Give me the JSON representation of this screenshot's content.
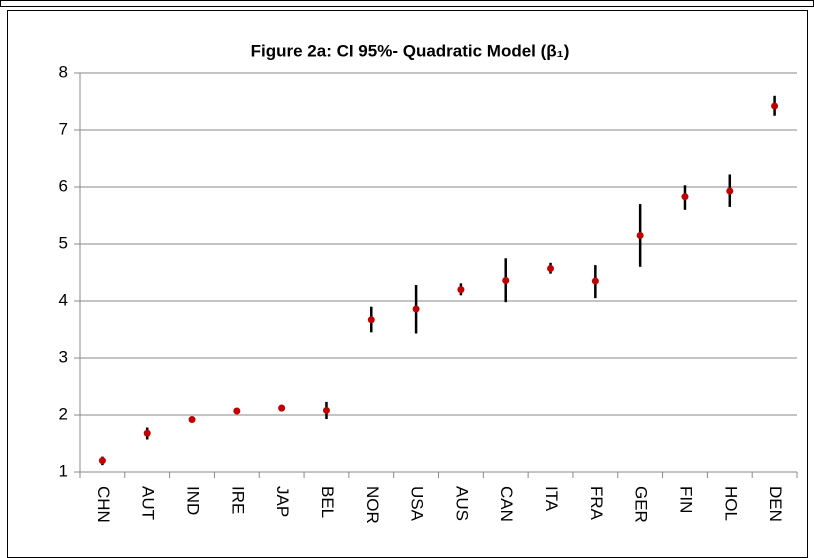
{
  "chart_data": {
    "type": "errorbar",
    "title": "Figure 2a: CI 95%- Quadratic Model (β₁)",
    "categories": [
      "CHN",
      "AUT",
      "IND",
      "IRE",
      "JAP",
      "BEL",
      "NOR",
      "USA",
      "AUS",
      "CAN",
      "ITA",
      "FRA",
      "GER",
      "FIN",
      "HOL",
      "DEN"
    ],
    "series": [
      {
        "color": "#c00000",
        "values": [
          1.2,
          1.68,
          1.92,
          2.07,
          2.12,
          2.08,
          3.67,
          3.86,
          4.2,
          4.36,
          4.57,
          4.35,
          5.15,
          5.83,
          5.93,
          7.42
        ],
        "lower": [
          1.12,
          1.57,
          1.88,
          2.05,
          2.07,
          1.93,
          3.45,
          3.43,
          4.1,
          3.98,
          4.48,
          4.05,
          4.6,
          5.6,
          5.65,
          7.25
        ],
        "upper": [
          1.27,
          1.78,
          1.96,
          2.09,
          2.18,
          2.23,
          3.9,
          4.28,
          4.31,
          4.75,
          4.67,
          4.63,
          5.7,
          6.03,
          6.22,
          7.6
        ]
      }
    ],
    "ylim": [
      1,
      8
    ],
    "yticks": [
      1,
      2,
      3,
      4,
      5,
      6,
      7,
      8
    ],
    "grid": true
  }
}
